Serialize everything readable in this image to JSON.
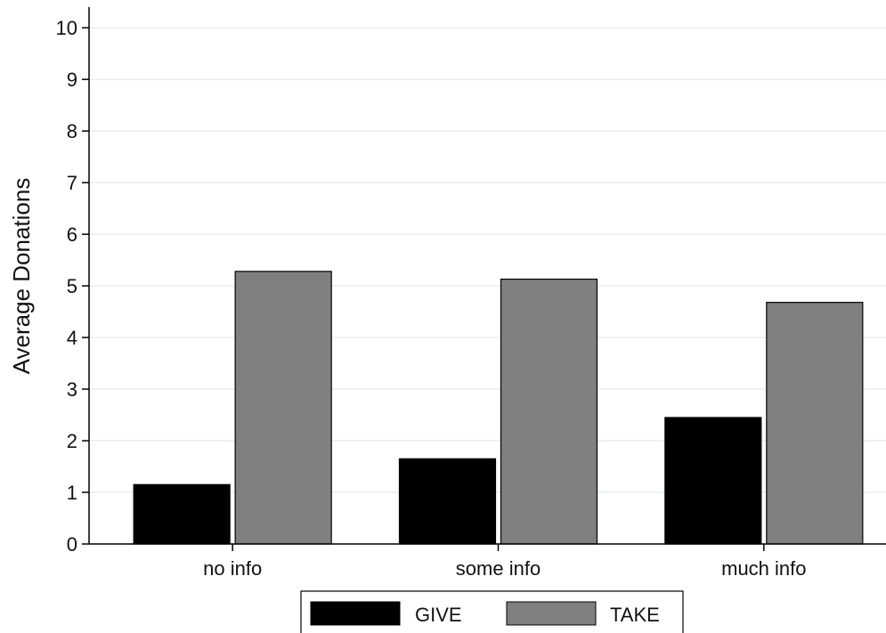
{
  "chart_data": {
    "type": "bar",
    "categories": [
      "no info",
      "some info",
      "much info"
    ],
    "series": [
      {
        "name": "GIVE",
        "values": [
          1.15,
          1.65,
          2.45
        ],
        "color": "#000000"
      },
      {
        "name": "TAKE",
        "values": [
          5.28,
          5.13,
          4.68
        ],
        "color": "#808080"
      }
    ],
    "ylabel": "Average Donations",
    "xlabel": "",
    "ylim": [
      0,
      10.4
    ],
    "yticks": [
      "0",
      "1",
      "2",
      "3",
      "4",
      "5",
      "6",
      "7",
      "8",
      "9",
      "10"
    ],
    "grid": true,
    "grid_color": "#e6eeee",
    "legend_position": "bottom-center"
  }
}
